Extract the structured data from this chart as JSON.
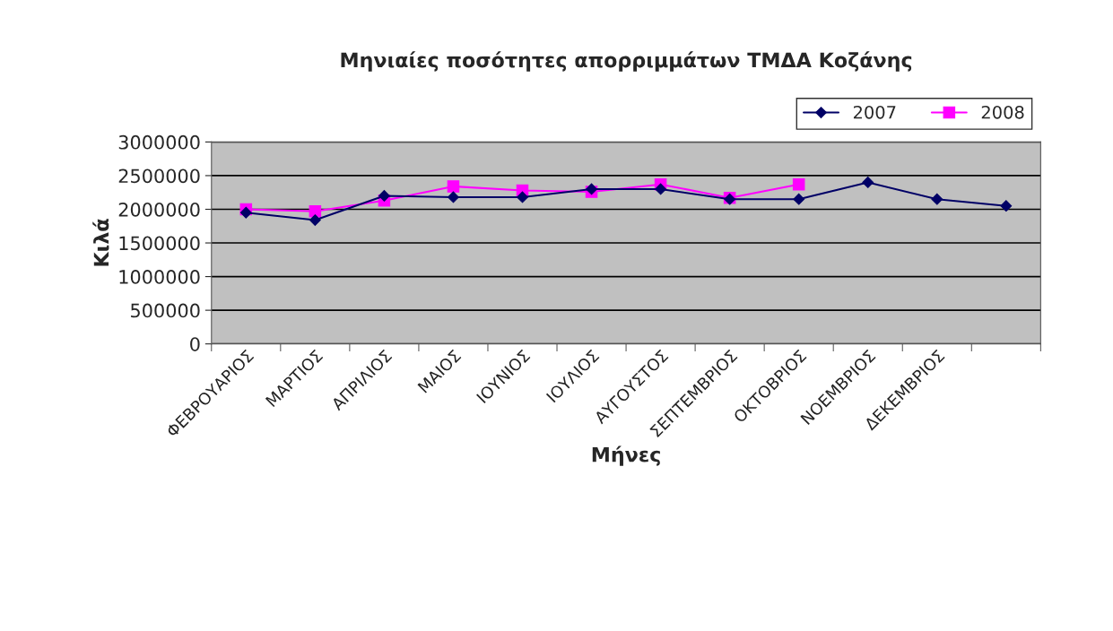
{
  "chart_data": {
    "type": "line",
    "title": "Μηνιαίες ποσότητες απορριμμάτων ΤΜΔΑ Κοζάνης",
    "xlabel": "Μήνες",
    "ylabel": "Κιλά",
    "categories": [
      "ΦΕΒΡΟΥΑΡΙΟΣ",
      "ΜΑΡΤΙΟΣ",
      "ΑΠΡΙΛΙΟΣ",
      "ΜΑΙΟΣ",
      "ΙΟΥΝΙΟΣ",
      "ΙΟΥΛΙΟΣ",
      "ΑΥΓΟΥΣΤΟΣ",
      "ΣΕΠΤΕΜΒΡΙΟΣ",
      "ΟΚΤΟΒΡΙΟΣ",
      "ΝΟΕΜΒΡΙΟΣ",
      "ΔΕΚΕΜΒΡΙΟΣ",
      null
    ],
    "series": [
      {
        "name": "2007",
        "color": "#000066",
        "marker": "diamond",
        "values": [
          1950000,
          1840000,
          2200000,
          2180000,
          2180000,
          2300000,
          2300000,
          2150000,
          2150000,
          2400000,
          2150000,
          2050000
        ]
      },
      {
        "name": "2008",
        "color": "#ff00ff",
        "marker": "square",
        "values": [
          2000000,
          1970000,
          2130000,
          2340000,
          2280000,
          2260000,
          2370000,
          2170000,
          2370000,
          null,
          null,
          null
        ]
      }
    ],
    "ylim": [
      0,
      3000000
    ],
    "yticks": [
      0,
      500000,
      1000000,
      1500000,
      2000000,
      2500000,
      3000000
    ],
    "grid": "y",
    "legend": "top right",
    "line_style": "solid"
  }
}
